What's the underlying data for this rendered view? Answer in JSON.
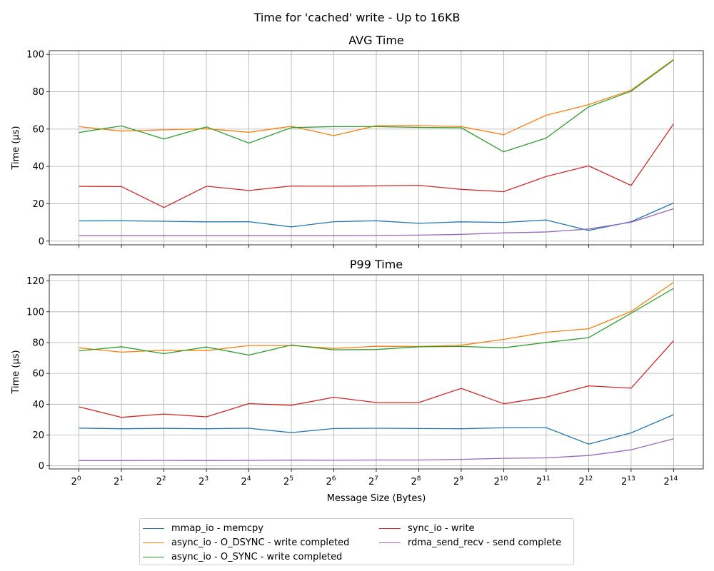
{
  "chart_data": {
    "type": "line",
    "suptitle": "Time for 'cached' write - Up to 16KB",
    "xlabel": "Message Size (Bytes)",
    "x_exponents": [
      0,
      1,
      2,
      3,
      4,
      5,
      6,
      7,
      8,
      9,
      10,
      11,
      12,
      13,
      14
    ],
    "x_tick_base": "2",
    "legend_location": "bottom-center",
    "series_meta": [
      {
        "name": "mmap_io - memcpy",
        "color": "#1f77b4"
      },
      {
        "name": "async_io - O_DSYNC - write completed",
        "color": "#ff7f0e"
      },
      {
        "name": "async_io - O_SYNC - write completed",
        "color": "#2ca02c"
      },
      {
        "name": "sync_io - write",
        "color": "#d62728"
      },
      {
        "name": "rdma_send_recv - send complete",
        "color": "#9467bd"
      }
    ],
    "panels": [
      {
        "title": "AVG Time",
        "ylabel": "Time (µs)",
        "ylim": [
          -2,
          102
        ],
        "yticks": [
          0,
          20,
          40,
          60,
          80,
          100
        ],
        "grid": true,
        "series": [
          {
            "name": "mmap_io - memcpy",
            "values": [
              10.8,
              10.9,
              10.6,
              10.3,
              10.4,
              7.6,
              10.4,
              10.9,
              9.5,
              10.3,
              10.0,
              11.3,
              5.7,
              10.4,
              20.4
            ]
          },
          {
            "name": "async_io - O_DSYNC - write completed",
            "values": [
              61.3,
              58.9,
              59.6,
              60.2,
              58.3,
              61.5,
              56.5,
              61.8,
              61.9,
              61.3,
              57.0,
              67.4,
              73.1,
              80.8,
              97.3
            ]
          },
          {
            "name": "async_io - O_SYNC - write completed",
            "values": [
              58.2,
              61.7,
              54.7,
              61.2,
              52.5,
              60.8,
              61.3,
              61.3,
              60.9,
              60.7,
              47.8,
              55.2,
              71.9,
              80.3,
              97.0
            ]
          },
          {
            "name": "sync_io - write",
            "values": [
              29.3,
              29.2,
              18.0,
              29.4,
              27.1,
              29.5,
              29.4,
              29.6,
              29.9,
              27.7,
              26.5,
              34.6,
              40.3,
              29.8,
              62.8
            ]
          },
          {
            "name": "rdma_send_recv - send complete",
            "values": [
              2.9,
              2.9,
              2.9,
              2.9,
              2.9,
              2.9,
              2.9,
              3.0,
              3.2,
              3.6,
              4.4,
              4.9,
              6.5,
              10.1,
              17.3
            ]
          }
        ]
      },
      {
        "title": "P99 Time",
        "ylabel": "Time (µs)",
        "ylim": [
          -2,
          124
        ],
        "yticks": [
          0,
          20,
          40,
          60,
          80,
          100,
          120
        ],
        "grid": true,
        "series": [
          {
            "name": "mmap_io - memcpy",
            "values": [
              24.5,
              24.1,
              24.3,
              24.1,
              24.4,
              21.6,
              24.2,
              24.4,
              24.2,
              24.1,
              24.7,
              24.8,
              14.1,
              21.4,
              33.2
            ]
          },
          {
            "name": "async_io - O_DSYNC - write completed",
            "values": [
              76.6,
              73.8,
              75.1,
              74.8,
              78.1,
              78.1,
              76.2,
              77.6,
              77.5,
              78.3,
              82.1,
              86.7,
              89.0,
              100.2,
              119.1
            ]
          },
          {
            "name": "async_io - O_SYNC - write completed",
            "values": [
              74.6,
              77.3,
              72.8,
              77.1,
              71.9,
              78.4,
              75.3,
              75.5,
              77.3,
              77.5,
              76.6,
              80.1,
              83.2,
              99.1,
              115.2
            ]
          },
          {
            "name": "sync_io - write",
            "values": [
              38.3,
              31.5,
              33.6,
              31.8,
              40.4,
              39.3,
              44.5,
              41.1,
              41.1,
              50.3,
              40.3,
              44.6,
              51.9,
              50.4,
              81.2
            ]
          },
          {
            "name": "rdma_send_recv - send complete",
            "values": [
              3.4,
              3.4,
              3.5,
              3.4,
              3.5,
              3.7,
              3.6,
              3.8,
              3.8,
              4.2,
              4.9,
              5.2,
              6.7,
              10.4,
              17.6
            ]
          }
        ]
      }
    ]
  }
}
